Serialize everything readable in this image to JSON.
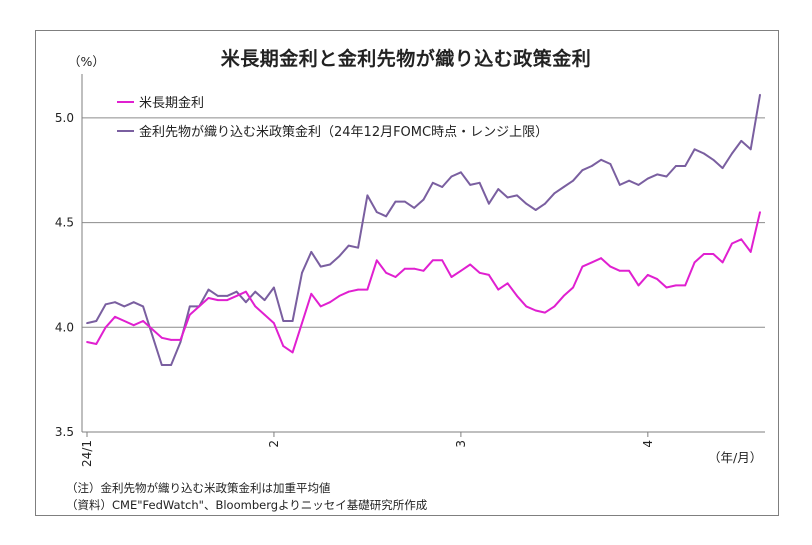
{
  "chart_data": {
    "type": "line",
    "title": "米長期金利と金利先物が織り込む政策金利",
    "ylabel": "（%）",
    "xlabel": "（年/月）",
    "ylim": [
      3.5,
      5.2
    ],
    "y_ticks": [
      "3.5",
      "4.0",
      "4.5",
      "5.0"
    ],
    "x_tick_labels": [
      "24/1",
      "2",
      "3",
      "4"
    ],
    "x_tick_index": [
      0,
      20,
      40,
      60
    ],
    "grid": "horizontal",
    "legend_position": "top-left",
    "series": [
      {
        "name": "米長期金利",
        "color": "#e020d0",
        "values": [
          3.93,
          3.92,
          4.0,
          4.05,
          4.03,
          4.01,
          4.03,
          3.99,
          3.95,
          3.94,
          3.94,
          4.06,
          4.1,
          4.14,
          4.13,
          4.13,
          4.15,
          4.17,
          4.1,
          4.06,
          4.02,
          3.91,
          3.88,
          4.02,
          4.16,
          4.1,
          4.12,
          4.15,
          4.17,
          4.18,
          4.18,
          4.32,
          4.26,
          4.24,
          4.28,
          4.28,
          4.27,
          4.32,
          4.32,
          4.24,
          4.27,
          4.3,
          4.26,
          4.25,
          4.18,
          4.21,
          4.15,
          4.1,
          4.08,
          4.07,
          4.1,
          4.15,
          4.19,
          4.29,
          4.31,
          4.33,
          4.29,
          4.27,
          4.27,
          4.2,
          4.25,
          4.23,
          4.19,
          4.2,
          4.2,
          4.31,
          4.35,
          4.35,
          4.31,
          4.4,
          4.42,
          4.36,
          4.55
        ]
      },
      {
        "name": "金利先物が織り込む米政策金利（24年12月FOMC時点・レンジ上限）",
        "color": "#7a5fa0",
        "values": [
          4.02,
          4.03,
          4.11,
          4.12,
          4.1,
          4.12,
          4.1,
          3.96,
          3.82,
          3.82,
          3.93,
          4.1,
          4.1,
          4.18,
          4.15,
          4.15,
          4.17,
          4.12,
          4.17,
          4.13,
          4.19,
          4.03,
          4.03,
          4.26,
          4.36,
          4.29,
          4.3,
          4.34,
          4.39,
          4.38,
          4.63,
          4.55,
          4.53,
          4.6,
          4.6,
          4.57,
          4.61,
          4.69,
          4.67,
          4.72,
          4.74,
          4.68,
          4.69,
          4.59,
          4.66,
          4.62,
          4.63,
          4.59,
          4.56,
          4.59,
          4.64,
          4.67,
          4.7,
          4.75,
          4.77,
          4.8,
          4.78,
          4.68,
          4.7,
          4.68,
          4.71,
          4.73,
          4.72,
          4.77,
          4.77,
          4.85,
          4.83,
          4.8,
          4.76,
          4.83,
          4.89,
          4.85,
          5.11
        ]
      }
    ]
  },
  "notes": {
    "note1": "（注）金利先物が織り込む米政策金利は加重平均値",
    "note2": "（資料）CME\"FedWatch\"、Bloombergよりニッセイ基礎研究所作成"
  }
}
